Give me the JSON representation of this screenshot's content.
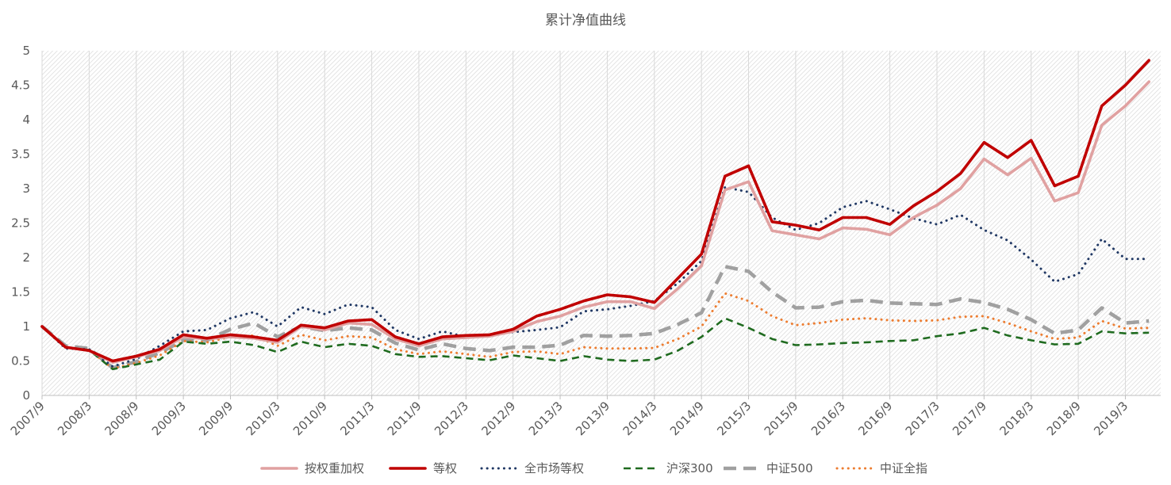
{
  "chart_data": {
    "type": "line",
    "title": "累计净值曲线",
    "xlabel": "",
    "ylabel": "",
    "ylim": [
      0,
      5
    ],
    "y_ticks": [
      "0",
      "0.5",
      "1",
      "1.5",
      "2",
      "2.5",
      "3",
      "3.5",
      "4",
      "4.5",
      "5"
    ],
    "x_tick_labels": [
      "2007/9",
      "2008/3",
      "2008/9",
      "2009/3",
      "2009/9",
      "2010/3",
      "2010/9",
      "2011/3",
      "2011/9",
      "2012/3",
      "2012/9",
      "2013/3",
      "2013/9",
      "2014/3",
      "2014/9",
      "2015/3",
      "2015/9",
      "2016/3",
      "2016/9",
      "2017/3",
      "2017/9",
      "2018/3",
      "2018/9",
      "2019/3"
    ],
    "x_range_quarters": [
      0,
      47.5
    ],
    "grid": "hatched background with vertical gridlines",
    "legend_position": "bottom",
    "series": [
      {
        "name": "按权重加权",
        "color": "#E0A1A1",
        "style": "solid",
        "values": [
          1.0,
          0.7,
          0.65,
          0.48,
          0.56,
          0.65,
          0.85,
          0.82,
          0.85,
          0.83,
          0.77,
          1.0,
          0.95,
          1.05,
          1.03,
          0.82,
          0.72,
          0.82,
          0.84,
          0.86,
          0.93,
          1.07,
          1.15,
          1.28,
          1.36,
          1.36,
          1.26,
          1.55,
          1.88,
          2.98,
          3.1,
          2.39,
          2.33,
          2.27,
          2.43,
          2.41,
          2.33,
          2.58,
          2.76,
          3.0,
          3.43,
          3.2,
          3.44,
          2.82,
          2.94,
          3.92,
          4.2,
          4.55
        ]
      },
      {
        "name": "等权",
        "color": "#C00000",
        "style": "solid",
        "values": [
          1.0,
          0.7,
          0.65,
          0.5,
          0.57,
          0.67,
          0.88,
          0.83,
          0.88,
          0.85,
          0.8,
          1.02,
          0.98,
          1.08,
          1.1,
          0.85,
          0.75,
          0.85,
          0.87,
          0.88,
          0.96,
          1.15,
          1.25,
          1.37,
          1.46,
          1.43,
          1.35,
          1.7,
          2.05,
          3.18,
          3.33,
          2.52,
          2.47,
          2.4,
          2.58,
          2.58,
          2.48,
          2.75,
          2.96,
          3.22,
          3.67,
          3.45,
          3.7,
          3.04,
          3.18,
          4.2,
          4.5,
          4.86
        ]
      },
      {
        "name": "全市场等权",
        "color": "#203864",
        "style": "dotted",
        "values": [
          1.0,
          0.68,
          0.67,
          0.42,
          0.53,
          0.72,
          0.93,
          0.95,
          1.12,
          1.21,
          1.0,
          1.28,
          1.18,
          1.32,
          1.28,
          0.95,
          0.82,
          0.93,
          0.85,
          0.88,
          0.92,
          0.95,
          0.99,
          1.22,
          1.25,
          1.3,
          1.37,
          1.63,
          1.95,
          3.02,
          2.95,
          2.58,
          2.4,
          2.5,
          2.73,
          2.82,
          2.7,
          2.57,
          2.48,
          2.62,
          2.4,
          2.25,
          1.97,
          1.65,
          1.76,
          2.27,
          1.98,
          1.98
        ]
      },
      {
        "name": "沪深300",
        "color": "#1F6B1F",
        "style": "dashed",
        "values": [
          1.0,
          0.7,
          0.66,
          0.38,
          0.45,
          0.52,
          0.78,
          0.75,
          0.78,
          0.73,
          0.63,
          0.78,
          0.7,
          0.75,
          0.72,
          0.6,
          0.56,
          0.57,
          0.54,
          0.51,
          0.58,
          0.54,
          0.5,
          0.57,
          0.52,
          0.5,
          0.52,
          0.65,
          0.85,
          1.12,
          0.98,
          0.82,
          0.73,
          0.74,
          0.76,
          0.77,
          0.79,
          0.8,
          0.86,
          0.9,
          0.98,
          0.87,
          0.8,
          0.74,
          0.75,
          0.93,
          0.9,
          0.91
        ]
      },
      {
        "name": "中证500",
        "color": "#A0A0A0",
        "style": "dashed-wide",
        "values": [
          1.0,
          0.72,
          0.68,
          0.4,
          0.49,
          0.62,
          0.8,
          0.8,
          0.96,
          1.05,
          0.85,
          1.0,
          0.94,
          0.98,
          0.95,
          0.76,
          0.66,
          0.75,
          0.68,
          0.65,
          0.7,
          0.7,
          0.73,
          0.87,
          0.86,
          0.87,
          0.9,
          1.03,
          1.2,
          1.87,
          1.8,
          1.5,
          1.27,
          1.28,
          1.36,
          1.38,
          1.34,
          1.33,
          1.32,
          1.4,
          1.35,
          1.25,
          1.1,
          0.9,
          0.95,
          1.27,
          1.05,
          1.08
        ]
      },
      {
        "name": "中证全指",
        "color": "#ED7D31",
        "style": "dotted",
        "values": [
          1.0,
          0.7,
          0.66,
          0.39,
          0.47,
          0.58,
          0.79,
          0.77,
          0.85,
          0.87,
          0.72,
          0.88,
          0.8,
          0.86,
          0.84,
          0.67,
          0.6,
          0.64,
          0.6,
          0.56,
          0.63,
          0.64,
          0.6,
          0.7,
          0.68,
          0.68,
          0.69,
          0.82,
          1.0,
          1.48,
          1.37,
          1.15,
          1.02,
          1.05,
          1.1,
          1.12,
          1.09,
          1.08,
          1.09,
          1.14,
          1.15,
          1.05,
          0.93,
          0.82,
          0.84,
          1.08,
          0.97,
          0.98
        ]
      }
    ]
  }
}
